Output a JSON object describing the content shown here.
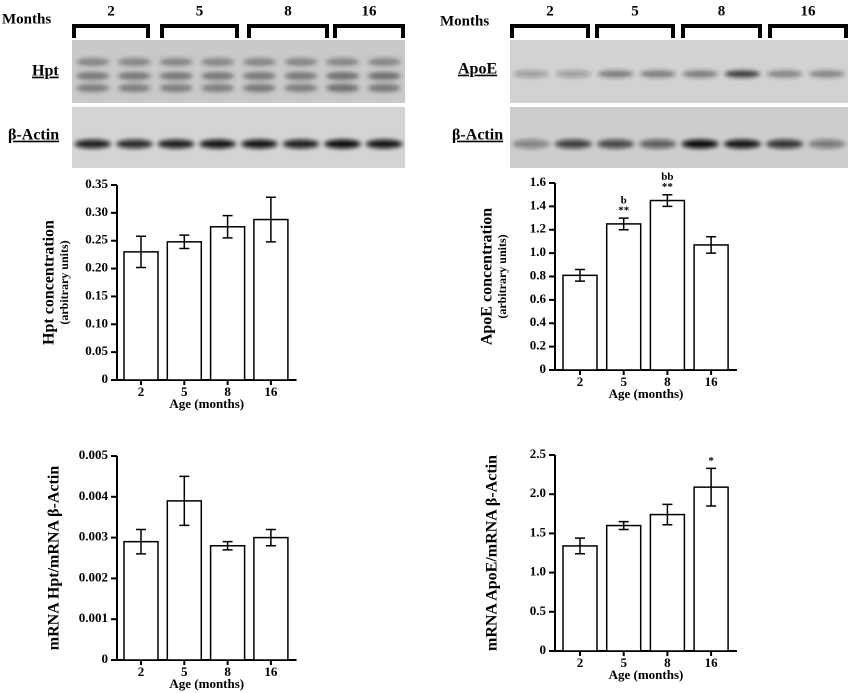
{
  "blots": [
    {
      "months_label": "Months",
      "groups": [
        "2",
        "5",
        "8",
        "16"
      ],
      "rows": [
        "Hpt",
        "β-Actin"
      ]
    },
    {
      "months_label": "Months",
      "groups": [
        "2",
        "5",
        "8",
        "16"
      ],
      "rows": [
        "ApoE",
        "β-Actin"
      ]
    }
  ],
  "chart_data": [
    {
      "type": "bar",
      "ylabel": "Hpt concentration",
      "ylabel_note": "(arbitrary units)",
      "xlabel": "Age (months)",
      "categories": [
        "2",
        "5",
        "8",
        "16"
      ],
      "values": [
        0.23,
        0.248,
        0.275,
        0.288
      ],
      "errors": [
        0.028,
        0.012,
        0.02,
        0.04
      ],
      "color": "#ffffff",
      "ylim": [
        0,
        0.35
      ],
      "yticks": [
        0,
        0.05,
        {
          "value": 0.1,
          "label": "0.10"
        },
        0.15,
        {
          "value": 0.2,
          "label": "0.20"
        },
        0.25,
        {
          "value": 0.3,
          "label": "0.30"
        },
        0.35
      ]
    },
    {
      "type": "bar",
      "ylabel": "ApoE concentration",
      "ylabel_note": "(arbitrary units)",
      "xlabel": "Age (months)",
      "categories": [
        "2",
        "5",
        "8",
        "16"
      ],
      "values": [
        0.81,
        1.25,
        1.45,
        1.07
      ],
      "errors": [
        0.05,
        0.05,
        0.05,
        0.07
      ],
      "color": "#ffffff",
      "ylim": [
        0,
        1.6
      ],
      "yticks": [
        0,
        0.2,
        0.4,
        0.6,
        0.8,
        {
          "value": 1,
          "label": "1.0"
        },
        1.2,
        1.4,
        1.6
      ],
      "annotations": [
        {
          "category": "5",
          "labels": [
            "b",
            "**"
          ]
        },
        {
          "category": "8",
          "labels": [
            "bb",
            "**"
          ]
        }
      ]
    },
    {
      "type": "bar",
      "ylabel": "mRNA Hpt/mRNA β-Actin",
      "xlabel": "Age (months)",
      "categories": [
        "2",
        "5",
        "8",
        "16"
      ],
      "values": [
        0.0029,
        0.0039,
        0.0028,
        0.003
      ],
      "errors": [
        0.0003,
        0.0006,
        0.0001,
        0.0002
      ],
      "color": "#ffffff",
      "ylim": [
        0,
        0.005
      ],
      "yticks": [
        0,
        0.001,
        0.002,
        0.003,
        0.004,
        0.005
      ]
    },
    {
      "type": "bar",
      "ylabel": "mRNA ApoE/mRNA β-Actin",
      "xlabel": "Age (months)",
      "categories": [
        "2",
        "5",
        "8",
        "16"
      ],
      "values": [
        1.34,
        1.6,
        1.74,
        2.09
      ],
      "errors": [
        0.1,
        0.05,
        0.13,
        0.24
      ],
      "color": "#ffffff",
      "ylim": [
        0,
        2.5
      ],
      "yticks": [
        0,
        0.5,
        {
          "value": 1,
          "label": "1.0"
        },
        1.5,
        {
          "value": 2,
          "label": "2.0"
        },
        2.5
      ],
      "annotations": [
        {
          "category": "16",
          "labels": [
            "*"
          ]
        }
      ]
    }
  ]
}
